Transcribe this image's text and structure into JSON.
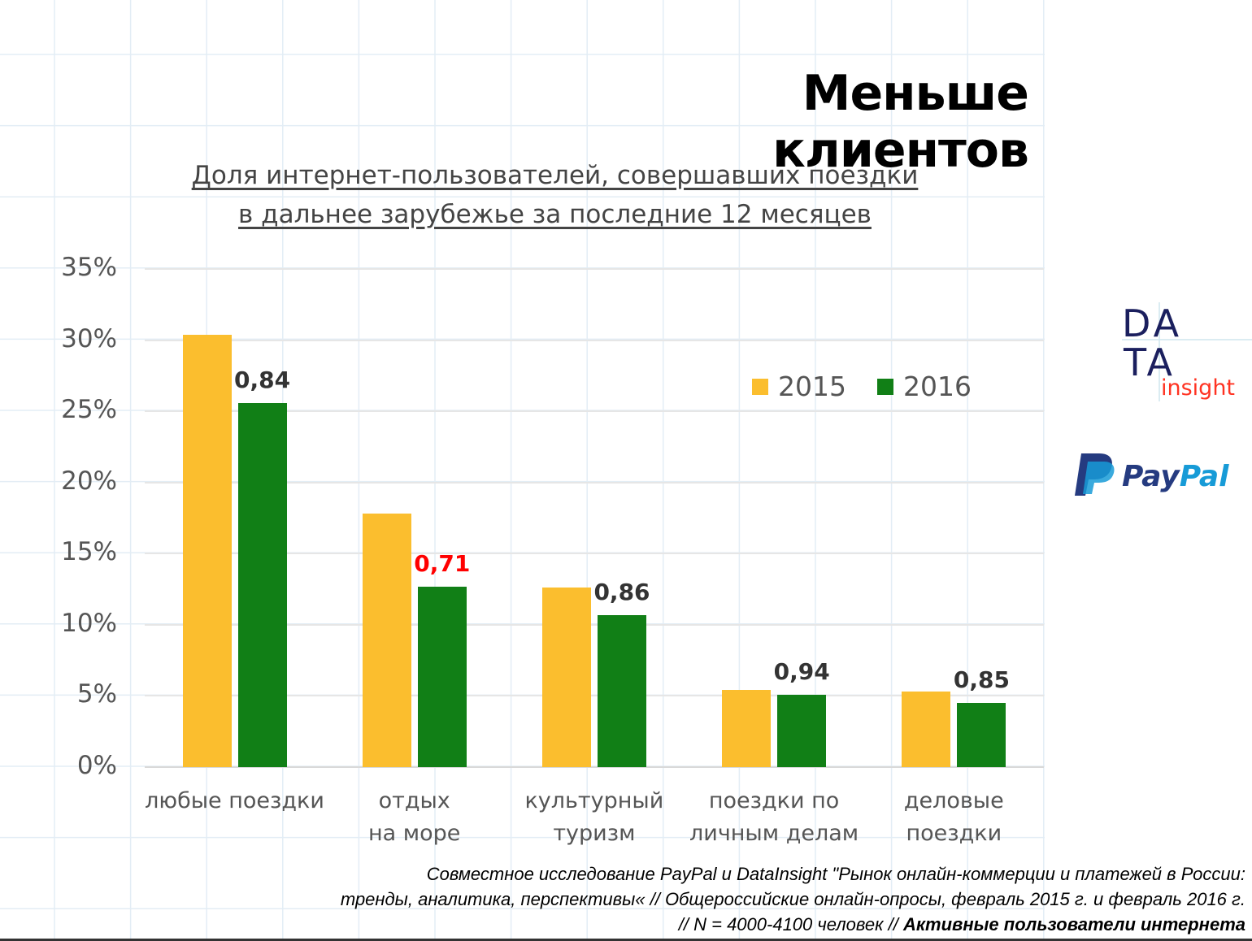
{
  "title": "Меньше клиентов",
  "subtitle_line1": "Доля интернет-пользователей, совершавших поездки",
  "subtitle_line2": "в дальнее зарубежье за последние 12 месяцев",
  "chart_data": {
    "type": "bar",
    "title": "Доля интернет-пользователей, совершавших поездки в дальнее зарубежье за последние 12 месяцев",
    "categories": [
      "любые поездки",
      "отдых\nна море",
      "культурный\nтуризм",
      "поездки по\nличным делам",
      "деловые\nпоездки"
    ],
    "series": [
      {
        "name": "2015",
        "color": "#FBBE2E",
        "values": [
          30.4,
          17.8,
          12.6,
          5.4,
          5.3
        ]
      },
      {
        "name": "2016",
        "color": "#117F16",
        "values": [
          25.6,
          12.7,
          10.7,
          5.1,
          4.5
        ]
      }
    ],
    "ratio_labels": [
      "0,84",
      "0,71",
      "0,86",
      "0,94",
      "0,85"
    ],
    "ratio_label_colors": [
      "#333333",
      "#FF0000",
      "#333333",
      "#333333",
      "#333333"
    ],
    "yticks": [
      "0%",
      "5%",
      "10%",
      "15%",
      "20%",
      "25%",
      "30%",
      "35%"
    ],
    "ylim": [
      0,
      35
    ],
    "grid": true,
    "legend_position": "top-right"
  },
  "logos": {
    "datainsight": "DATA insight",
    "paypal": "PayPal"
  },
  "footer": {
    "line1": "Совместное исследование PayPal и DataInsight  \"Рынок онлайн-коммерции и платежей в России:",
    "line2": "тренды, аналитика, перспективы« // Общероссийские онлайн-опросы, февраль 2015 г. и февраль 2016 г.",
    "line3_normal": "// N = 4000-4100 человек // ",
    "line3_bold": "Активные пользователи интернета"
  }
}
